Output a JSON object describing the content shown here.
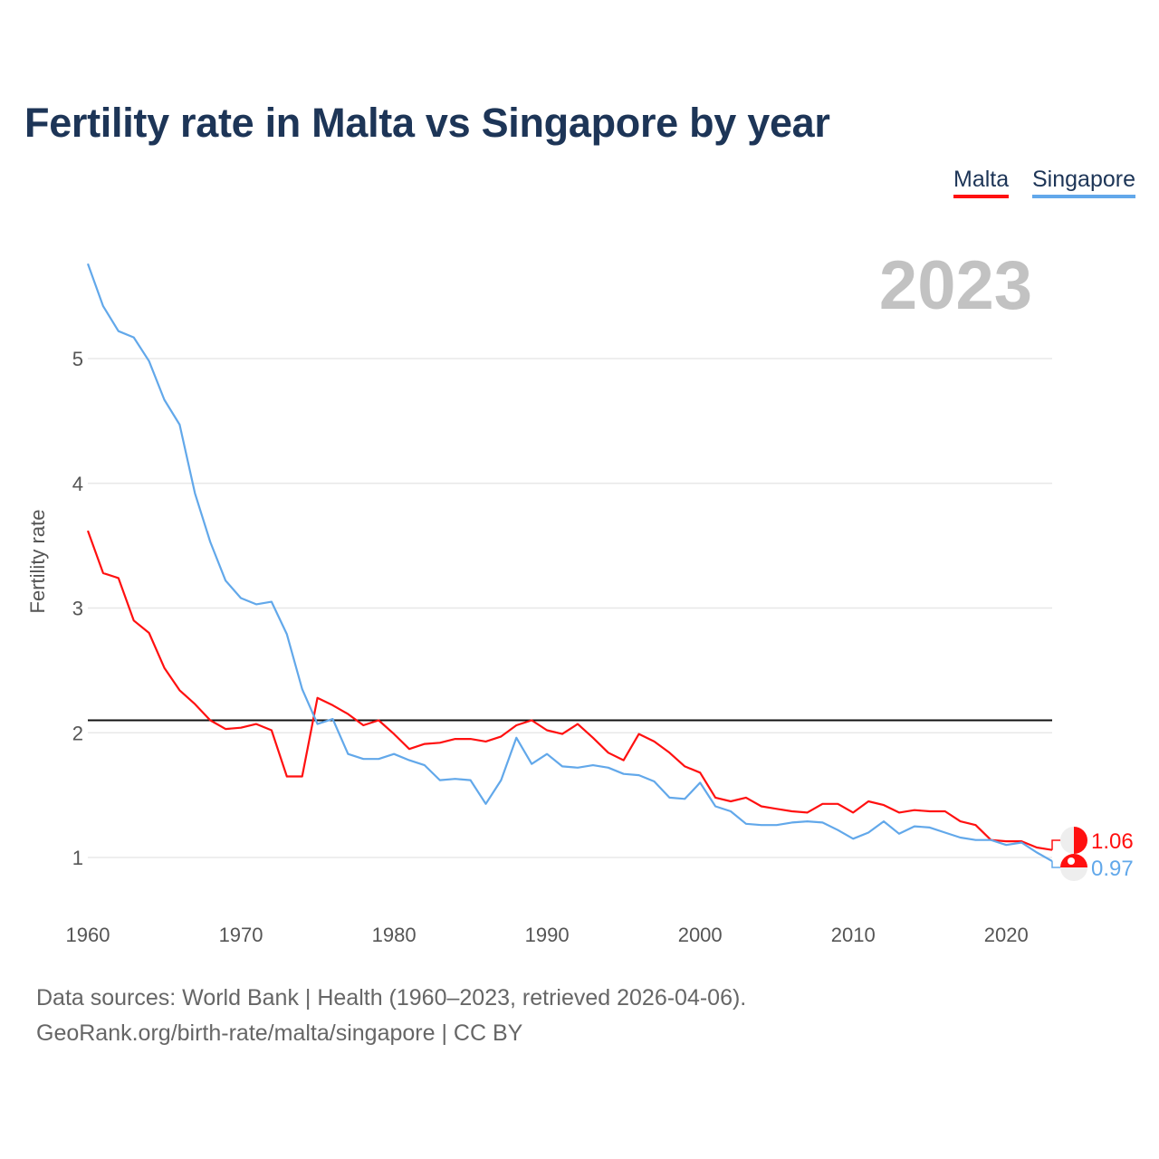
{
  "chart_data": {
    "type": "line",
    "title": "Fertility rate in Malta vs Singapore by year",
    "ylabel": "Fertility rate",
    "xlabel": "",
    "year_badge": "2023",
    "xlim": [
      1960,
      2023
    ],
    "ylim": [
      0.55,
      5.95
    ],
    "x_ticks": [
      "1960",
      "1970",
      "1980",
      "1990",
      "2000",
      "2010",
      "2020"
    ],
    "y_ticks": [
      "1",
      "2",
      "3",
      "4",
      "5"
    ],
    "grid": true,
    "legend_position": "top-right",
    "reference_line": 2.1,
    "x_start": 1960,
    "series": [
      {
        "name": "Malta",
        "color": "#ff1010",
        "end_label": "1.06",
        "values": [
          3.62,
          3.28,
          3.24,
          2.9,
          2.8,
          2.52,
          2.34,
          2.23,
          2.1,
          2.03,
          2.04,
          2.07,
          2.02,
          1.65,
          1.65,
          2.28,
          2.22,
          2.15,
          2.06,
          2.1,
          1.99,
          1.87,
          1.91,
          1.92,
          1.95,
          1.95,
          1.93,
          1.97,
          2.06,
          2.1,
          2.02,
          1.99,
          2.07,
          1.96,
          1.84,
          1.78,
          1.99,
          1.93,
          1.84,
          1.73,
          1.68,
          1.48,
          1.45,
          1.48,
          1.41,
          1.39,
          1.37,
          1.36,
          1.43,
          1.43,
          1.36,
          1.45,
          1.42,
          1.36,
          1.38,
          1.37,
          1.37,
          1.29,
          1.26,
          1.14,
          1.13,
          1.13,
          1.08,
          1.06
        ]
      },
      {
        "name": "Singapore",
        "color": "#62a8ea",
        "end_label": "0.97",
        "values": [
          5.76,
          5.42,
          5.22,
          5.17,
          4.98,
          4.67,
          4.47,
          3.92,
          3.53,
          3.22,
          3.08,
          3.03,
          3.05,
          2.79,
          2.35,
          2.07,
          2.11,
          1.83,
          1.79,
          1.79,
          1.83,
          1.78,
          1.74,
          1.62,
          1.63,
          1.62,
          1.43,
          1.62,
          1.96,
          1.75,
          1.83,
          1.73,
          1.72,
          1.74,
          1.72,
          1.67,
          1.66,
          1.61,
          1.48,
          1.47,
          1.6,
          1.41,
          1.37,
          1.27,
          1.26,
          1.26,
          1.28,
          1.29,
          1.28,
          1.22,
          1.15,
          1.2,
          1.29,
          1.19,
          1.25,
          1.24,
          1.2,
          1.16,
          1.14,
          1.14,
          1.1,
          1.12,
          1.04,
          0.97
        ]
      }
    ]
  },
  "footer": {
    "line1": "Data sources: World Bank | Health (1960–2023, retrieved 2026-04-06).",
    "line2": "GeoRank.org/birth-rate/malta/singapore | CC BY"
  }
}
